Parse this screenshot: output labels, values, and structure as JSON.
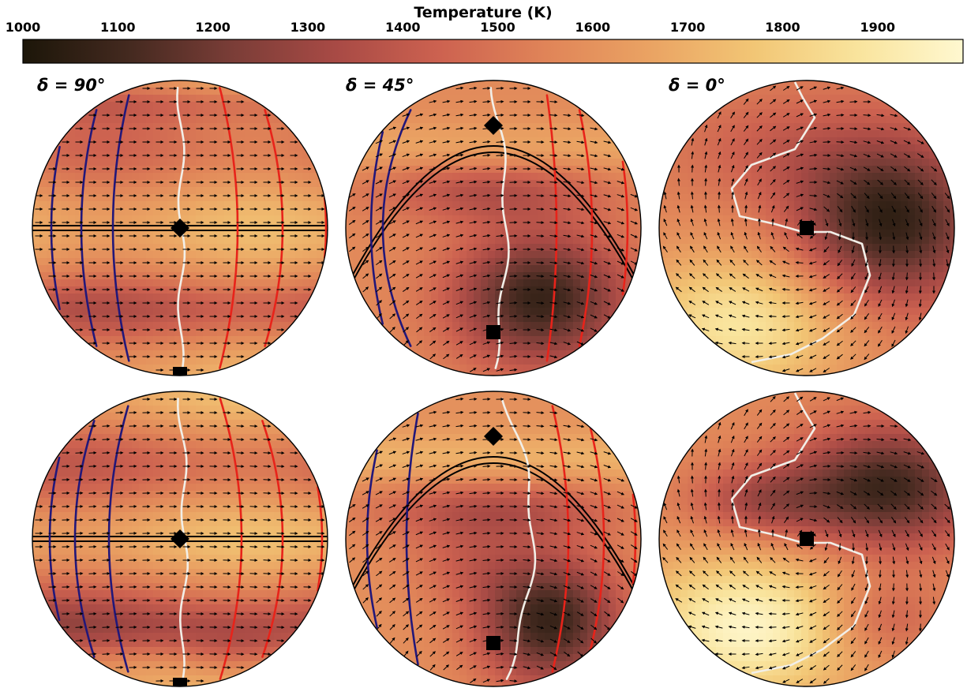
{
  "colorbar": {
    "title": "Temperature (K)",
    "ticks": [
      "1000",
      "1100",
      "1200",
      "1300",
      "1400",
      "1500",
      "1600",
      "1700",
      "1800",
      "1900"
    ],
    "range": [
      1000,
      1990
    ],
    "stops": [
      "#1c1609",
      "#43291f",
      "#7a3d37",
      "#a84a45",
      "#cd6250",
      "#e08458",
      "#eaa363",
      "#f2c675",
      "#f9e49d",
      "#fff8d0"
    ]
  },
  "panels": {
    "p1": {
      "label": "δ = 90°"
    },
    "p2": {
      "label": "δ = 45°"
    },
    "p3": {
      "label": "δ = 0°"
    }
  },
  "chart_data": {
    "type": "heatmap",
    "title": "",
    "colorbar_label": "Temperature (K)",
    "colorbar_range": [
      1000,
      1990
    ],
    "layout": "2 rows x 3 columns of orthographic globe projections",
    "columns": [
      "δ = 90°",
      "δ = 45°",
      "δ = 0°"
    ],
    "overlays": [
      "wind vector arrows",
      "blue contour lines",
      "white contour line",
      "red contour lines",
      "black diamond marker",
      "black square marker"
    ],
    "contour_colors": {
      "blue": "#22177a",
      "white": "#f2efe8",
      "red": "#e8231a"
    }
  }
}
